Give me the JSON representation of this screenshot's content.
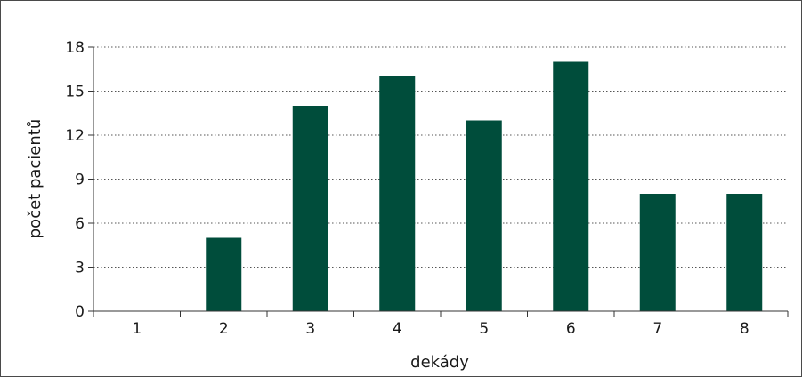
{
  "chart_data": {
    "type": "bar",
    "title": "",
    "xlabel": "dekády",
    "ylabel": "počet pacientů",
    "categories": [
      "1",
      "2",
      "3",
      "4",
      "5",
      "6",
      "7",
      "8"
    ],
    "values": [
      0,
      5,
      14,
      16,
      13,
      17,
      8,
      8
    ],
    "ylim": [
      0,
      18
    ],
    "yticks": [
      "0",
      "3",
      "6",
      "9",
      "12",
      "15",
      "18"
    ],
    "grid": "horizontal dotted",
    "legend": "none",
    "bar_color": "#004d3b"
  }
}
